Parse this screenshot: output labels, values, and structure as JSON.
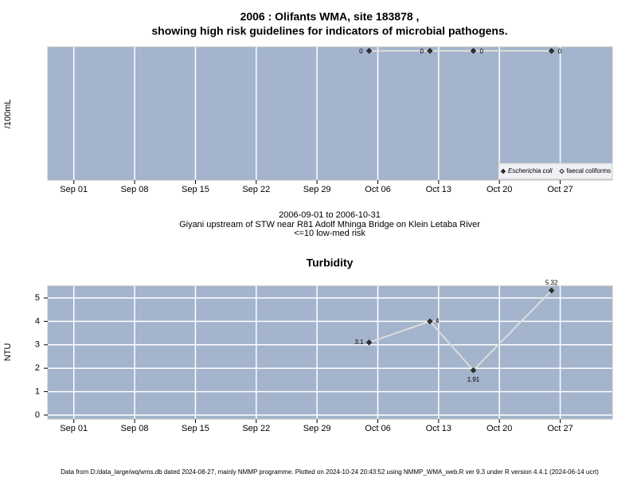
{
  "chart_data": [
    {
      "type": "line",
      "title": "2006 : Olifants WMA, site 183878 ,",
      "subtitle": "showing high risk guidelines for indicators of microbial pathogens.",
      "ylabel": "/100mL",
      "annotations": [
        "2006-09-01 to 2006-10-31",
        "Giyani upstream of STW near R81 Adolf Mhinga Bridge on Klein Letaba River",
        "<=10 low-med risk"
      ],
      "x": [
        "2006-10-05",
        "2006-10-12",
        "2006-10-17",
        "2006-10-26"
      ],
      "series": [
        {
          "name": "Escherichia coli",
          "color": "#333333",
          "values": [
            0,
            0,
            0,
            0
          ]
        },
        {
          "name": "faecal coliforms",
          "color": "#ffffff",
          "values": [
            null,
            null,
            null,
            null
          ]
        }
      ],
      "xlim": [
        "2006-08-29",
        "2006-11-02"
      ],
      "xticks": [
        {
          "value": "2006-09-01",
          "label": "Sep 01"
        },
        {
          "value": "2006-09-08",
          "label": "Sep 08"
        },
        {
          "value": "2006-09-15",
          "label": "Sep 15"
        },
        {
          "value": "2006-09-22",
          "label": "Sep 22"
        },
        {
          "value": "2006-09-29",
          "label": "Sep 29"
        },
        {
          "value": "2006-10-06",
          "label": "Oct 06"
        },
        {
          "value": "2006-10-13",
          "label": "Oct 13"
        },
        {
          "value": "2006-10-20",
          "label": "Oct 20"
        },
        {
          "value": "2006-10-27",
          "label": "Oct 27"
        }
      ],
      "ylim": [
        -10,
        0.3
      ],
      "grid": true,
      "legend": "bottom-right"
    },
    {
      "type": "line",
      "title": "Turbidity",
      "ylabel": "NTU",
      "x": [
        "2006-10-05",
        "2006-10-12",
        "2006-10-17",
        "2006-10-26"
      ],
      "series": [
        {
          "name": "Turbidity",
          "color": "#333333",
          "values": [
            3.1,
            4,
            1.91,
            5.32
          ]
        }
      ],
      "xlim": [
        "2006-08-29",
        "2006-11-02"
      ],
      "xticks": [
        {
          "value": "2006-09-01",
          "label": "Sep 01"
        },
        {
          "value": "2006-09-08",
          "label": "Sep 08"
        },
        {
          "value": "2006-09-15",
          "label": "Sep 15"
        },
        {
          "value": "2006-09-22",
          "label": "Sep 22"
        },
        {
          "value": "2006-09-29",
          "label": "Sep 29"
        },
        {
          "value": "2006-10-06",
          "label": "Oct 06"
        },
        {
          "value": "2006-10-13",
          "label": "Oct 13"
        },
        {
          "value": "2006-10-20",
          "label": "Oct 20"
        },
        {
          "value": "2006-10-27",
          "label": "Oct 27"
        }
      ],
      "ylim": [
        -0.17,
        5.51
      ],
      "yticks": [
        0,
        1,
        2,
        3,
        4,
        5
      ],
      "grid": true
    }
  ],
  "footer": "Data from D:/data_large/wq/wms.db dated 2024-08-27, mainly NMMP programme. Plotted on 2024-10-24 20:43:52 using NMMP_WMA_web.R ver 9.3 under R version 4.4.1 (2024-06-14 ucrt)"
}
